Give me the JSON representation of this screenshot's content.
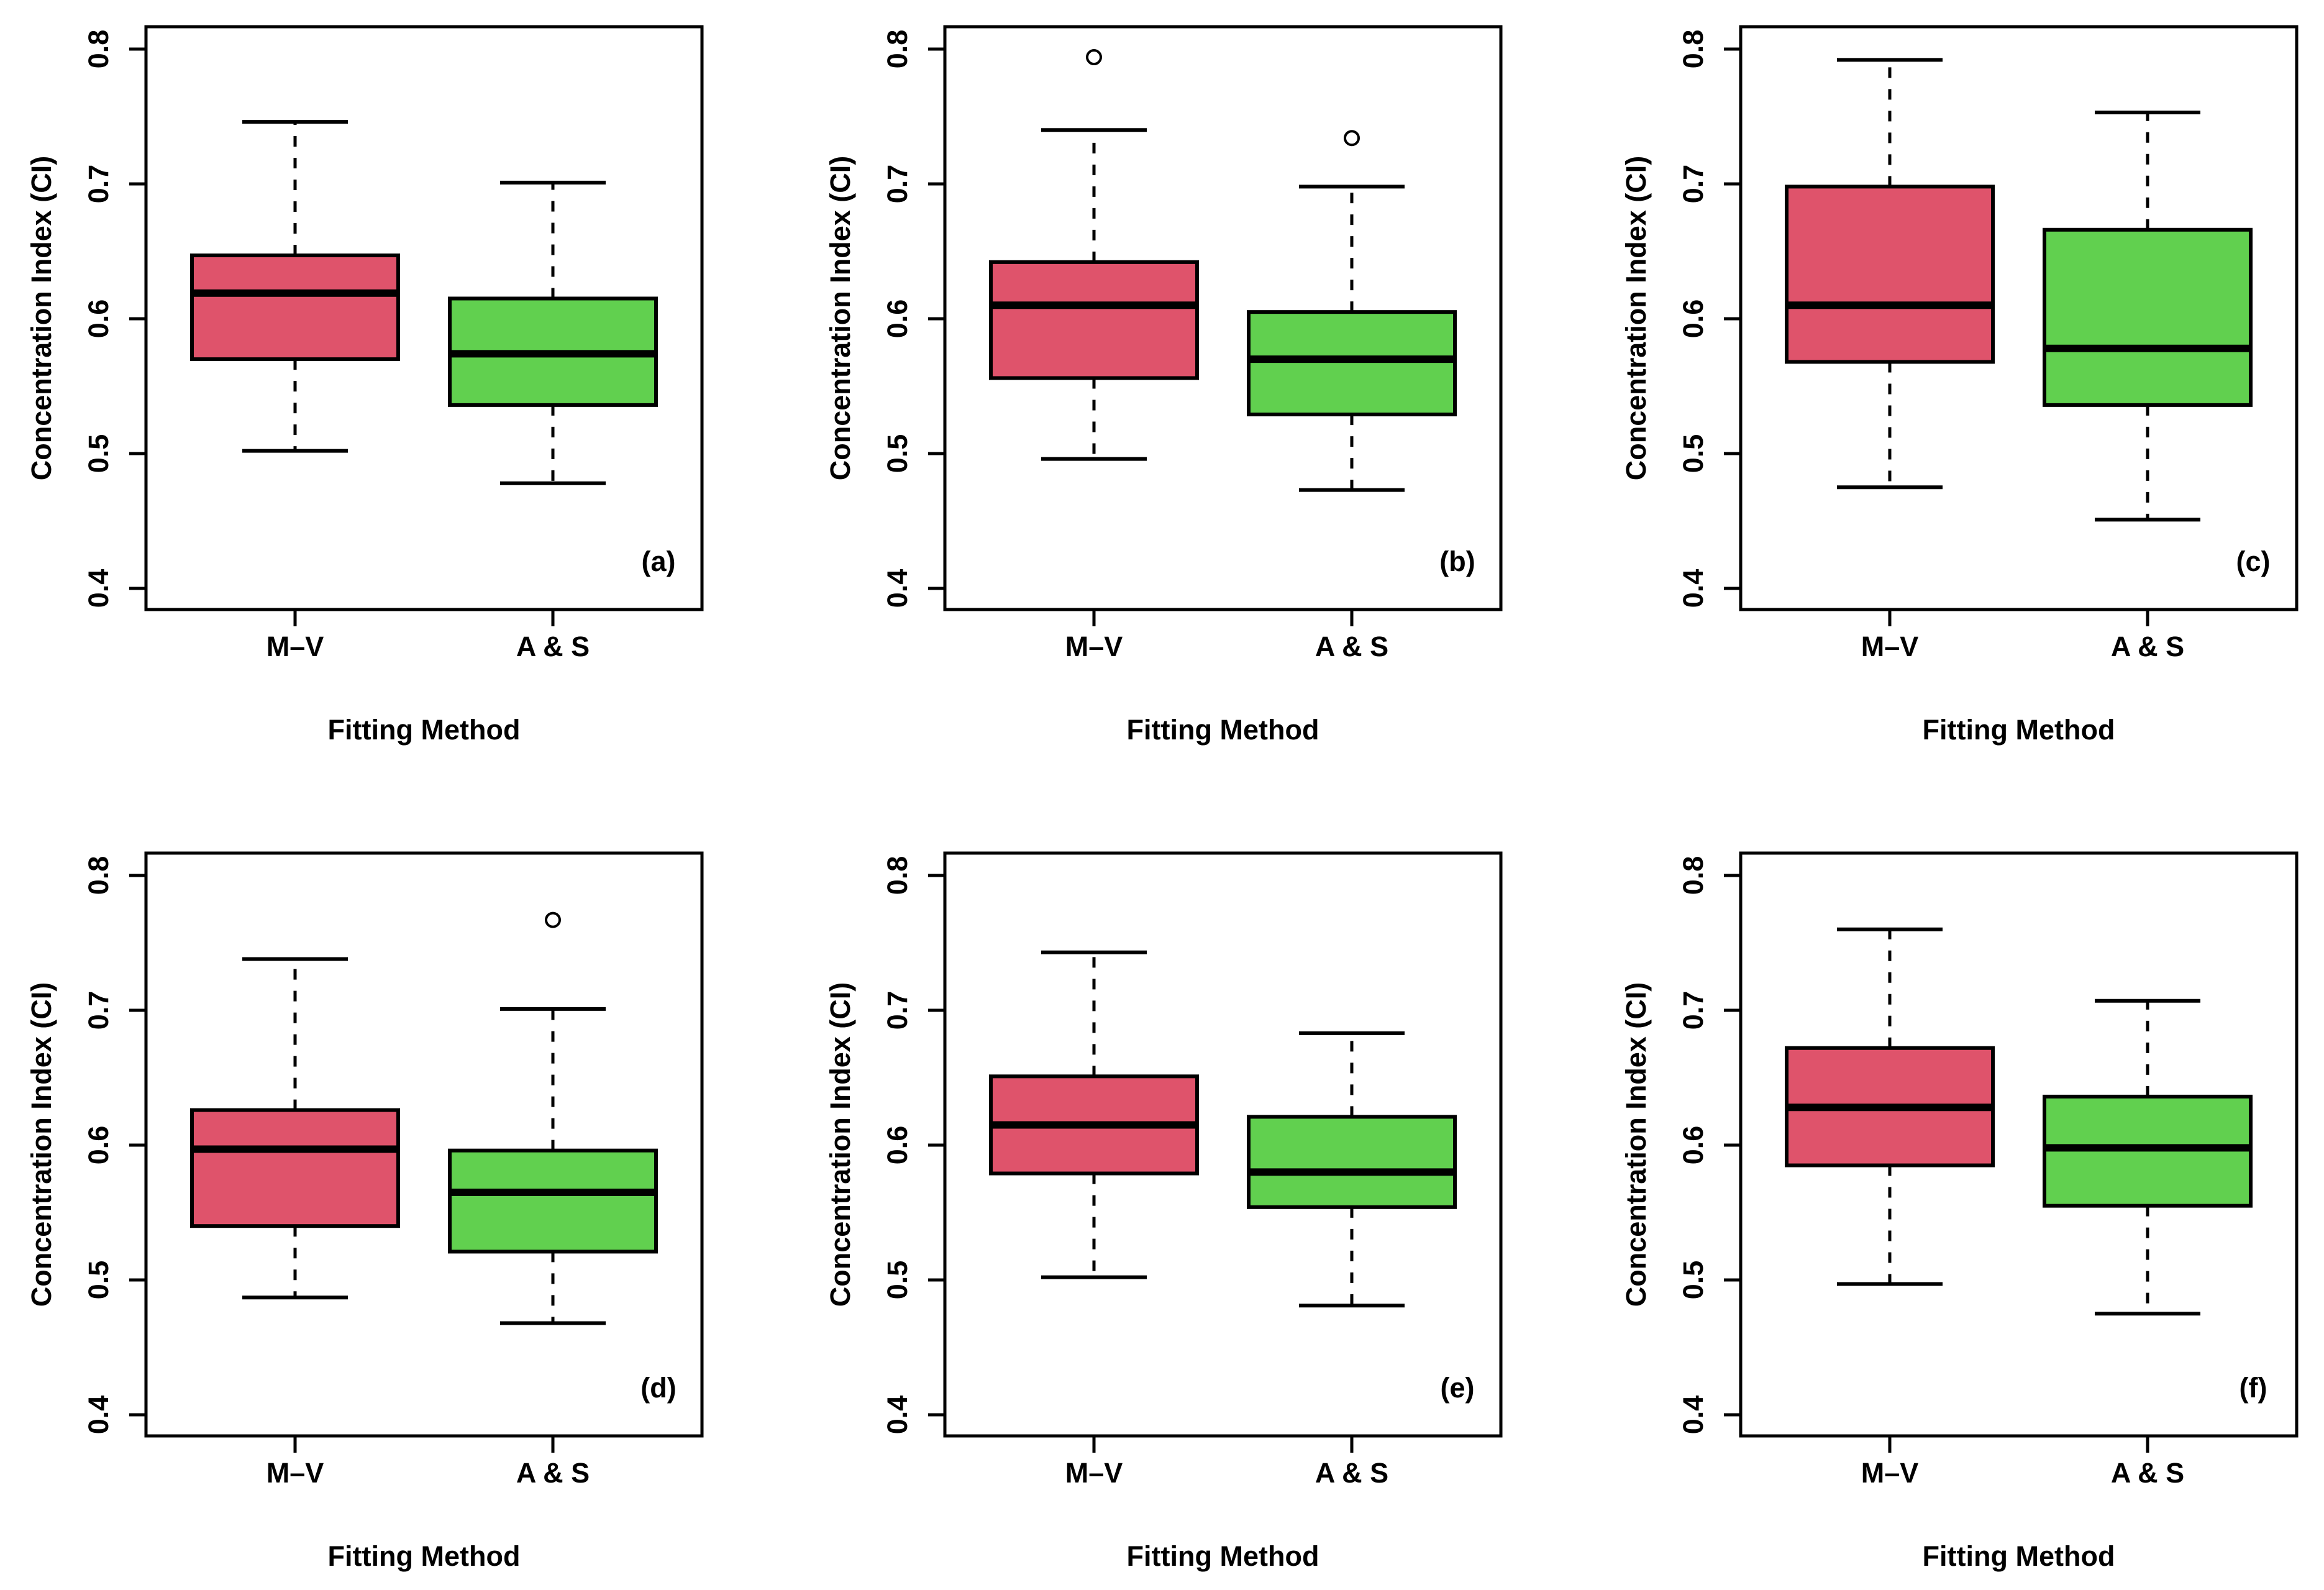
{
  "figure": {
    "background": "#ffffff",
    "rows": 2,
    "cols": 3
  },
  "axis": {
    "ylabel": "Concentration Index (CI)",
    "xlabel": "Fitting Method",
    "yticks": [
      0.4,
      0.5,
      0.6,
      0.7,
      0.8
    ],
    "ytick_labels": [
      "0.4",
      "0.5",
      "0.6",
      "0.7",
      "0.8"
    ],
    "ylim": [
      0.4,
      0.8
    ],
    "categories": [
      "M–V",
      "A & S"
    ]
  },
  "colors": {
    "mv_box": "#DF536B",
    "as_box": "#61D04F",
    "line": "#000000"
  },
  "chart_data": [
    {
      "type": "boxplot",
      "label": "(a)",
      "xlabel": "Fitting Method",
      "ylabel": "Concentration Index (CI)",
      "ylim": [
        0.4,
        0.8
      ],
      "categories": [
        "M–V",
        "A & S"
      ],
      "series": [
        {
          "name": "M–V",
          "color": "#DF536B",
          "lower_whisker": 0.502,
          "q1": 0.57,
          "median": 0.619,
          "q3": 0.647,
          "upper_whisker": 0.746,
          "outliers": []
        },
        {
          "name": "A & S",
          "color": "#61D04F",
          "lower_whisker": 0.478,
          "q1": 0.536,
          "median": 0.574,
          "q3": 0.615,
          "upper_whisker": 0.701,
          "outliers": []
        }
      ]
    },
    {
      "type": "boxplot",
      "label": "(b)",
      "xlabel": "Fitting Method",
      "ylabel": "Concentration Index (CI)",
      "ylim": [
        0.4,
        0.8
      ],
      "categories": [
        "M–V",
        "A & S"
      ],
      "series": [
        {
          "name": "M–V",
          "color": "#DF536B",
          "lower_whisker": 0.496,
          "q1": 0.556,
          "median": 0.61,
          "q3": 0.642,
          "upper_whisker": 0.74,
          "outliers": [
            0.794
          ]
        },
        {
          "name": "A & S",
          "color": "#61D04F",
          "lower_whisker": 0.473,
          "q1": 0.529,
          "median": 0.57,
          "q3": 0.605,
          "upper_whisker": 0.698,
          "outliers": [
            0.734
          ]
        }
      ]
    },
    {
      "type": "boxplot",
      "label": "(c)",
      "xlabel": "Fitting Method",
      "ylabel": "Concentration Index (CI)",
      "ylim": [
        0.4,
        0.8
      ],
      "categories": [
        "M–V",
        "A & S"
      ],
      "series": [
        {
          "name": "M–V",
          "color": "#DF536B",
          "lower_whisker": 0.475,
          "q1": 0.568,
          "median": 0.61,
          "q3": 0.698,
          "upper_whisker": 0.792,
          "outliers": []
        },
        {
          "name": "A & S",
          "color": "#61D04F",
          "lower_whisker": 0.451,
          "q1": 0.536,
          "median": 0.578,
          "q3": 0.666,
          "upper_whisker": 0.753,
          "outliers": []
        }
      ]
    },
    {
      "type": "boxplot",
      "label": "(d)",
      "xlabel": "Fitting Method",
      "ylabel": "Concentration Index (CI)",
      "ylim": [
        0.4,
        0.8
      ],
      "categories": [
        "M–V",
        "A & S"
      ],
      "series": [
        {
          "name": "M–V",
          "color": "#DF536B",
          "lower_whisker": 0.487,
          "q1": 0.54,
          "median": 0.597,
          "q3": 0.626,
          "upper_whisker": 0.738,
          "outliers": []
        },
        {
          "name": "A & S",
          "color": "#61D04F",
          "lower_whisker": 0.468,
          "q1": 0.521,
          "median": 0.565,
          "q3": 0.596,
          "upper_whisker": 0.701,
          "outliers": [
            0.767
          ]
        }
      ]
    },
    {
      "type": "boxplot",
      "label": "(e)",
      "xlabel": "Fitting Method",
      "ylabel": "Concentration Index (CI)",
      "ylim": [
        0.4,
        0.8
      ],
      "categories": [
        "M–V",
        "A & S"
      ],
      "series": [
        {
          "name": "M–V",
          "color": "#DF536B",
          "lower_whisker": 0.502,
          "q1": 0.579,
          "median": 0.615,
          "q3": 0.651,
          "upper_whisker": 0.743,
          "outliers": []
        },
        {
          "name": "A & S",
          "color": "#61D04F",
          "lower_whisker": 0.481,
          "q1": 0.554,
          "median": 0.58,
          "q3": 0.621,
          "upper_whisker": 0.683,
          "outliers": []
        }
      ]
    },
    {
      "type": "boxplot",
      "label": "(f)",
      "xlabel": "Fitting Method",
      "ylabel": "Concentration Index (CI)",
      "ylim": [
        0.4,
        0.8
      ],
      "categories": [
        "M–V",
        "A & S"
      ],
      "series": [
        {
          "name": "M–V",
          "color": "#DF536B",
          "lower_whisker": 0.497,
          "q1": 0.585,
          "median": 0.628,
          "q3": 0.672,
          "upper_whisker": 0.76,
          "outliers": []
        },
        {
          "name": "A & S",
          "color": "#61D04F",
          "lower_whisker": 0.475,
          "q1": 0.555,
          "median": 0.598,
          "q3": 0.636,
          "upper_whisker": 0.707,
          "outliers": []
        }
      ]
    }
  ]
}
